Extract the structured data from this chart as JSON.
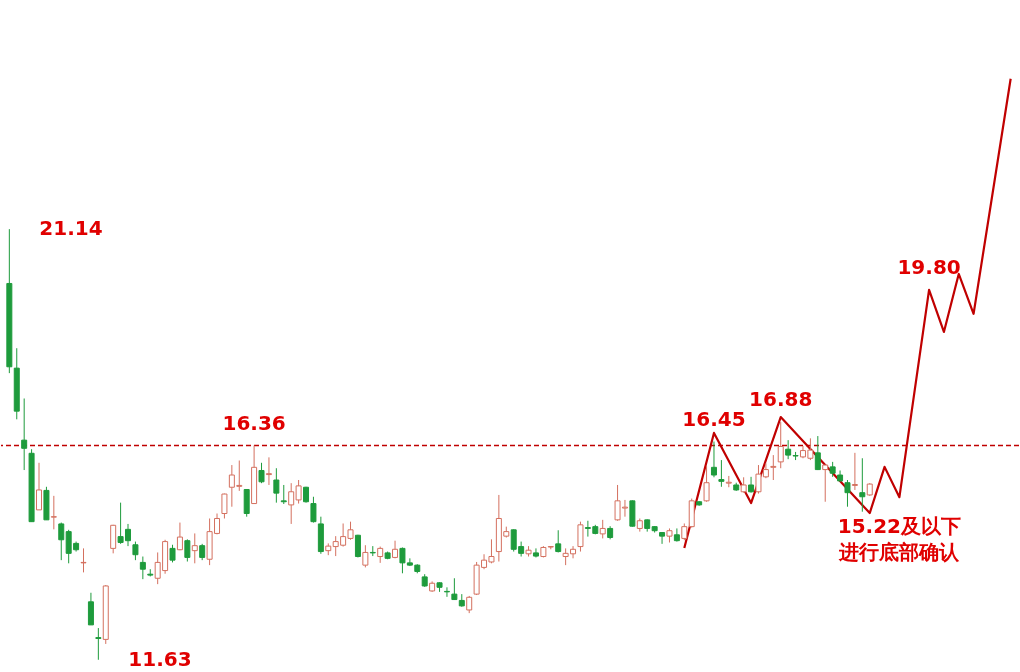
{
  "chart_data": {
    "type": "candlestick",
    "categories": [
      null,
      null,
      null,
      null,
      null,
      null,
      null,
      null,
      null,
      null,
      null,
      null,
      null,
      null,
      null,
      null,
      null,
      null,
      null,
      null,
      null,
      null,
      null,
      null,
      null,
      null,
      null,
      null,
      null,
      null,
      null,
      null,
      null,
      null,
      null,
      null,
      null,
      null,
      null,
      null,
      null,
      null,
      null,
      null,
      null,
      null,
      null,
      null,
      null,
      null,
      null,
      null,
      null,
      null,
      null,
      null,
      null,
      null,
      null,
      null,
      null,
      null,
      null,
      null,
      null,
      null,
      null,
      null,
      null,
      null,
      null,
      null,
      null,
      null,
      null,
      null,
      null,
      null,
      null,
      null,
      null,
      null,
      null,
      null,
      null,
      null,
      null,
      null,
      null,
      null,
      null,
      null,
      null,
      null,
      null,
      null,
      null,
      null,
      null,
      null,
      null,
      null,
      null,
      null,
      null,
      null,
      null,
      null,
      null,
      null,
      null,
      null,
      null,
      null,
      null,
      null,
      null,
      null,
      null,
      null,
      null,
      null,
      null,
      null,
      null,
      null,
      null,
      null,
      null,
      null,
      null,
      null,
      null,
      null,
      null,
      null
    ],
    "ohlc": [
      [
        19.94,
        21.14,
        17.96,
        18.1
      ],
      [
        18.07,
        18.51,
        16.94,
        17.12
      ],
      [
        16.48,
        17.4,
        15.82,
        16.3
      ],
      [
        16.19,
        16.28,
        14.68,
        14.68
      ],
      [
        14.94,
        15.98,
        14.94,
        15.38
      ],
      [
        15.37,
        15.45,
        14.72,
        14.72
      ],
      [
        14.78,
        15.25,
        14.51,
        14.79
      ],
      [
        14.63,
        14.66,
        13.83,
        14.28
      ],
      [
        14.46,
        14.5,
        13.76,
        13.98
      ],
      [
        14.2,
        14.24,
        14.02,
        14.06
      ],
      [
        13.77,
        14.09,
        13.56,
        13.78
      ],
      [
        12.91,
        13.11,
        12.4,
        12.4
      ],
      [
        12.12,
        12.33,
        11.63,
        12.1
      ],
      [
        12.08,
        13.28,
        11.98,
        13.26
      ],
      [
        14.09,
        14.61,
        13.98,
        14.6
      ],
      [
        14.35,
        15.1,
        14.19,
        14.22
      ],
      [
        14.51,
        14.63,
        14.14,
        14.26
      ],
      [
        14.17,
        14.24,
        13.83,
        13.95
      ],
      [
        13.78,
        13.91,
        13.41,
        13.63
      ],
      [
        13.52,
        13.63,
        13.47,
        13.5
      ],
      [
        13.43,
        14.0,
        13.3,
        13.78
      ],
      [
        13.6,
        14.28,
        13.53,
        14.24
      ],
      [
        14.09,
        14.17,
        13.78,
        13.83
      ],
      [
        14.06,
        14.66,
        14.05,
        14.34
      ],
      [
        14.26,
        14.29,
        13.8,
        13.89
      ],
      [
        14.04,
        14.42,
        13.76,
        14.15
      ],
      [
        14.15,
        14.19,
        13.83,
        13.89
      ],
      [
        13.85,
        14.75,
        13.72,
        14.46
      ],
      [
        14.42,
        14.86,
        14.4,
        14.75
      ],
      [
        14.86,
        15.3,
        14.75,
        15.29
      ],
      [
        15.44,
        15.93,
        15.01,
        15.71
      ],
      [
        15.46,
        16.03,
        15.36,
        15.48
      ],
      [
        15.39,
        15.4,
        14.79,
        14.86
      ],
      [
        15.08,
        16.36,
        15.07,
        15.88
      ],
      [
        15.81,
        15.98,
        15.53,
        15.56
      ],
      [
        15.72,
        16.1,
        15.49,
        15.74
      ],
      [
        15.6,
        15.86,
        15.1,
        15.31
      ],
      [
        15.14,
        15.49,
        15.07,
        15.12
      ],
      [
        15.05,
        15.53,
        14.63,
        15.34
      ],
      [
        15.16,
        15.6,
        15.08,
        15.47
      ],
      [
        15.44,
        15.45,
        15.1,
        15.12
      ],
      [
        15.08,
        15.23,
        14.66,
        14.68
      ],
      [
        14.63,
        14.79,
        13.97,
        14.02
      ],
      [
        14.04,
        14.2,
        13.94,
        14.14
      ],
      [
        14.13,
        14.36,
        13.92,
        14.24
      ],
      [
        14.16,
        14.64,
        14.13,
        14.35
      ],
      [
        14.31,
        14.68,
        14.28,
        14.5
      ],
      [
        14.38,
        14.39,
        13.89,
        13.91
      ],
      [
        13.72,
        14.16,
        13.67,
        14.0
      ],
      [
        14.0,
        14.14,
        13.92,
        13.99
      ],
      [
        13.91,
        14.13,
        13.77,
        14.09
      ],
      [
        13.99,
        14.02,
        13.85,
        13.87
      ],
      [
        13.89,
        14.26,
        13.87,
        14.07
      ],
      [
        14.09,
        14.11,
        13.54,
        13.77
      ],
      [
        13.77,
        13.87,
        13.7,
        13.72
      ],
      [
        13.72,
        13.74,
        13.54,
        13.58
      ],
      [
        13.46,
        13.52,
        13.24,
        13.26
      ],
      [
        13.15,
        13.36,
        13.13,
        13.32
      ],
      [
        13.33,
        13.34,
        13.13,
        13.23
      ],
      [
        13.14,
        13.23,
        13.02,
        13.13
      ],
      [
        13.08,
        13.43,
        12.95,
        12.96
      ],
      [
        12.94,
        13.08,
        12.8,
        12.82
      ],
      [
        12.73,
        13.04,
        12.66,
        13.01
      ],
      [
        13.08,
        13.79,
        13.06,
        13.72
      ],
      [
        13.67,
        13.96,
        13.63,
        13.83
      ],
      [
        13.79,
        14.29,
        13.76,
        13.91
      ],
      [
        14.02,
        15.27,
        13.8,
        14.75
      ],
      [
        14.36,
        14.57,
        14.33,
        14.46
      ],
      [
        14.5,
        14.51,
        14.02,
        14.07
      ],
      [
        14.13,
        14.24,
        13.91,
        13.98
      ],
      [
        13.97,
        14.14,
        13.91,
        14.05
      ],
      [
        13.99,
        14.09,
        13.89,
        13.92
      ],
      [
        13.91,
        14.14,
        13.89,
        14.11
      ],
      [
        14.12,
        14.14,
        14.07,
        14.13
      ],
      [
        14.19,
        14.49,
        14.0,
        14.02
      ],
      [
        13.91,
        14.09,
        13.72,
        13.98
      ],
      [
        13.97,
        14.14,
        13.87,
        14.07
      ],
      [
        14.13,
        14.68,
        14.02,
        14.61
      ],
      [
        14.55,
        14.7,
        14.35,
        14.53
      ],
      [
        14.57,
        14.61,
        14.4,
        14.42
      ],
      [
        14.41,
        14.72,
        14.31,
        14.53
      ],
      [
        14.53,
        14.58,
        14.29,
        14.33
      ],
      [
        14.72,
        15.49,
        14.7,
        15.14
      ],
      [
        14.98,
        15.16,
        14.79,
        15.0
      ],
      [
        15.14,
        15.15,
        14.57,
        14.58
      ],
      [
        14.53,
        14.75,
        14.46,
        14.7
      ],
      [
        14.72,
        14.73,
        14.46,
        14.53
      ],
      [
        14.57,
        14.58,
        14.44,
        14.48
      ],
      [
        14.44,
        14.45,
        14.19,
        14.36
      ],
      [
        14.36,
        14.53,
        14.22,
        14.48
      ],
      [
        14.39,
        14.53,
        14.24,
        14.26
      ],
      [
        14.31,
        14.64,
        14.27,
        14.57
      ],
      [
        14.57,
        15.19,
        14.55,
        15.14
      ],
      [
        15.12,
        15.13,
        15.03,
        15.05
      ],
      [
        15.14,
        15.91,
        15.12,
        15.54
      ],
      [
        15.88,
        16.45,
        15.66,
        15.71
      ],
      [
        15.61,
        16.04,
        15.45,
        15.57
      ],
      [
        15.53,
        15.69,
        15.44,
        15.55
      ],
      [
        15.49,
        15.54,
        15.36,
        15.38
      ],
      [
        15.34,
        15.66,
        15.32,
        15.49
      ],
      [
        15.49,
        15.67,
        15.32,
        15.34
      ],
      [
        15.34,
        15.93,
        15.3,
        15.73
      ],
      [
        15.67,
        15.97,
        15.64,
        15.83
      ],
      [
        15.88,
        16.15,
        15.6,
        15.9
      ],
      [
        16.0,
        16.88,
        15.86,
        16.34
      ],
      [
        16.28,
        16.48,
        16.06,
        16.15
      ],
      [
        16.14,
        16.22,
        16.04,
        16.13
      ],
      [
        16.11,
        16.35,
        16.08,
        16.25
      ],
      [
        16.08,
        16.52,
        16.04,
        16.26
      ],
      [
        16.2,
        16.57,
        15.82,
        15.83
      ],
      [
        15.83,
        15.94,
        15.12,
        15.93
      ],
      [
        15.89,
        16.0,
        15.67,
        15.75
      ],
      [
        15.71,
        15.81,
        15.56,
        15.58
      ],
      [
        15.54,
        15.6,
        15.01,
        15.32
      ],
      [
        15.48,
        16.2,
        15.38,
        15.5
      ],
      [
        15.32,
        16.08,
        14.9,
        15.23
      ],
      [
        15.27,
        15.53,
        15.25,
        15.51
      ],
      null,
      null,
      null,
      null,
      null,
      null,
      null,
      null,
      null,
      null,
      null,
      null,
      null,
      null,
      null,
      null,
      null,
      null,
      null
    ],
    "colors": [
      "#1e9b3c",
      "#1e9b3c",
      "#1e9b3c",
      "#1e9b3c",
      "#d4705f",
      "#1e9b3c",
      "#d4705f",
      "#1e9b3c",
      "#1e9b3c",
      "#1e9b3c",
      "#d4705f",
      "#1e9b3c",
      "#1e9b3c",
      "#d4705f",
      "#d4705f",
      "#1e9b3c",
      "#1e9b3c",
      "#1e9b3c",
      "#1e9b3c",
      "#1e9b3c",
      "#d4705f",
      "#d4705f",
      "#1e9b3c",
      "#d4705f",
      "#1e9b3c",
      "#d4705f",
      "#1e9b3c",
      "#d4705f",
      "#d4705f",
      "#d4705f",
      "#d4705f",
      "#d4705f",
      "#1e9b3c",
      "#d4705f",
      "#1e9b3c",
      "#d4705f",
      "#1e9b3c",
      "#1e9b3c",
      "#d4705f",
      "#d4705f",
      "#1e9b3c",
      "#1e9b3c",
      "#1e9b3c",
      "#d4705f",
      "#d4705f",
      "#d4705f",
      "#d4705f",
      "#1e9b3c",
      "#d4705f",
      "#1e9b3c",
      "#d4705f",
      "#1e9b3c",
      "#d4705f",
      "#1e9b3c",
      "#1e9b3c",
      "#1e9b3c",
      "#1e9b3c",
      "#d4705f",
      "#1e9b3c",
      "#1e9b3c",
      "#1e9b3c",
      "#1e9b3c",
      "#d4705f",
      "#d4705f",
      "#d4705f",
      "#d4705f",
      "#d4705f",
      "#d4705f",
      "#1e9b3c",
      "#1e9b3c",
      "#d4705f",
      "#1e9b3c",
      "#d4705f",
      "#d4705f",
      "#1e9b3c",
      "#d4705f",
      "#d4705f",
      "#d4705f",
      "#1e9b3c",
      "#1e9b3c",
      "#d4705f",
      "#1e9b3c",
      "#d4705f",
      "#d4705f",
      "#1e9b3c",
      "#d4705f",
      "#1e9b3c",
      "#1e9b3c",
      "#1e9b3c",
      "#d4705f",
      "#1e9b3c",
      "#d4705f",
      "#d4705f",
      "#1e9b3c",
      "#d4705f",
      "#1e9b3c",
      "#1e9b3c",
      "#d4705f",
      "#1e9b3c",
      "#d4705f",
      "#1e9b3c",
      "#d4705f",
      "#d4705f",
      "#d4705f",
      "#d4705f",
      "#1e9b3c",
      "#1e9b3c",
      "#d4705f",
      "#d4705f",
      "#1e9b3c",
      "#d4705f",
      "#1e9b3c",
      "#1e9b3c",
      "#1e9b3c",
      "#d4705f",
      "#1e9b3c",
      "#d4705f",
      null,
      null,
      null,
      null,
      null,
      null,
      null,
      null,
      null,
      null,
      null,
      null,
      null,
      null,
      null,
      null,
      null,
      null,
      null
    ],
    "series": [
      {
        "type": "line",
        "color": "#c00000",
        "values": [
          null,
          null,
          null,
          null,
          null,
          null,
          null,
          null,
          null,
          null,
          null,
          null,
          null,
          null,
          null,
          null,
          null,
          null,
          null,
          null,
          null,
          null,
          null,
          null,
          null,
          null,
          null,
          null,
          null,
          null,
          null,
          null,
          null,
          null,
          null,
          null,
          null,
          null,
          null,
          null,
          null,
          null,
          null,
          null,
          null,
          null,
          null,
          null,
          null,
          null,
          null,
          null,
          null,
          null,
          null,
          null,
          null,
          null,
          null,
          null,
          null,
          null,
          null,
          null,
          null,
          null,
          null,
          null,
          null,
          null,
          null,
          null,
          null,
          null,
          null,
          null,
          null,
          null,
          null,
          null,
          null,
          null,
          null,
          null,
          null,
          null,
          null,
          null,
          null,
          null,
          null,
          14.1,
          null,
          null,
          null,
          16.64,
          null,
          null,
          null,
          null,
          15.09,
          null,
          null,
          null,
          16.99,
          null,
          null,
          null,
          null,
          null,
          null,
          null,
          null,
          null,
          null,
          null,
          14.87,
          null,
          15.89,
          null,
          15.22,
          null,
          null,
          null,
          19.8,
          null,
          18.87,
          null,
          20.15,
          null,
          19.27,
          null,
          null,
          null,
          null,
          24.46
        ]
      }
    ],
    "ylim": [
      11.36,
      26.2
    ],
    "ref_lines": [
      {
        "axis": "y",
        "value": 16.36,
        "color": "#c00000",
        "line_style": "dashed"
      }
    ],
    "annotations": [
      "21.14",
      "11.63",
      {
        "text": "16.36",
        "y": 16.36
      },
      {
        "text": "16.45",
        "y": 16.45
      },
      {
        "text": "16.88",
        "y": 16.88
      },
      {
        "text": "19.80",
        "y": 19.8
      },
      {
        "text": "15.22及以下",
        "y": 15.22
      },
      {
        "text": "进行底部确认",
        "y": 15.22
      }
    ]
  }
}
